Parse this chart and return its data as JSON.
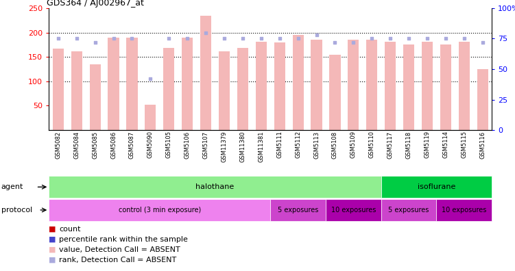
{
  "title": "GDS364 / AJ002967_at",
  "samples": [
    "GSM5082",
    "GSM5084",
    "GSM5085",
    "GSM5086",
    "GSM5087",
    "GSM5090",
    "GSM5105",
    "GSM5106",
    "GSM5107",
    "GSM11379",
    "GSM11380",
    "GSM11381",
    "GSM5111",
    "GSM5112",
    "GSM5113",
    "GSM5108",
    "GSM5109",
    "GSM5110",
    "GSM5117",
    "GSM5118",
    "GSM5119",
    "GSM5114",
    "GSM5115",
    "GSM5116"
  ],
  "bar_values": [
    167,
    162,
    135,
    190,
    190,
    52,
    169,
    190,
    235,
    162,
    168,
    181,
    180,
    195,
    185,
    155,
    185,
    185,
    181,
    175,
    181,
    175,
    181,
    125
  ],
  "rank_values": [
    75,
    75,
    72,
    75,
    75,
    42,
    75,
    75,
    80,
    75,
    75,
    75,
    75,
    75,
    78,
    72,
    72,
    75,
    75,
    75,
    75,
    75,
    75,
    72
  ],
  "bar_color_absent": "#f4b8b8",
  "rank_color_absent": "#aaaadd",
  "ylim_left": [
    0,
    250
  ],
  "ylim_right": [
    0,
    100
  ],
  "agent_halothane_samples": 18,
  "agent_color_halothane": "#90ee90",
  "agent_color_isoflurane": "#00cc44",
  "protocol_segments": [
    [
      0,
      12,
      "#ee82ee",
      "control (3 min exposure)"
    ],
    [
      12,
      15,
      "#cc44cc",
      "5 exposures"
    ],
    [
      15,
      18,
      "#aa00aa",
      "10 exposures"
    ],
    [
      18,
      21,
      "#cc44cc",
      "5 exposures"
    ],
    [
      21,
      24,
      "#aa00aa",
      "10 exposures"
    ]
  ],
  "legend_items": [
    [
      "#cc0000",
      "count"
    ],
    [
      "#4444cc",
      "percentile rank within the sample"
    ],
    [
      "#f4b8b8",
      "value, Detection Call = ABSENT"
    ],
    [
      "#aaaadd",
      "rank, Detection Call = ABSENT"
    ]
  ]
}
